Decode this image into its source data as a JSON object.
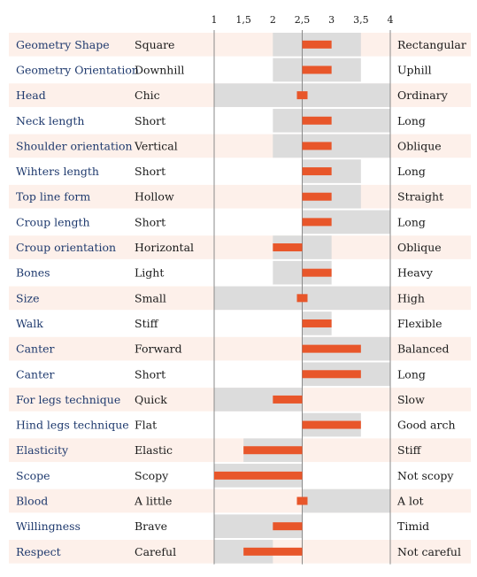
{
  "chart_data": {
    "type": "bar",
    "title": "",
    "xlim": [
      1,
      4
    ],
    "midpoint": 2.5,
    "x_ticks": [
      "1",
      "1,5",
      "2",
      "2,5",
      "3",
      "3,5",
      "4"
    ],
    "x_tick_values": [
      1,
      1.5,
      2,
      2.5,
      3,
      3.5,
      4
    ],
    "colors": {
      "bar": "#e8562a",
      "range": "#dcdcdc",
      "row_band": "#fdf0ea",
      "axis": "#8a8a8a"
    },
    "rows": [
      {
        "trait": "Geometry Shape",
        "low": "Square",
        "high": "Rectangular",
        "value": 3.0,
        "range": [
          2.0,
          3.5
        ]
      },
      {
        "trait": "Geometry Orientation",
        "low": "Downhill",
        "high": "Uphill",
        "value": 3.0,
        "range": [
          2.0,
          3.5
        ]
      },
      {
        "trait": "Head",
        "low": "Chic",
        "high": "Ordinary",
        "value": 2.6,
        "range": [
          1.0,
          4.0
        ]
      },
      {
        "trait": "Neck length",
        "low": "Short",
        "high": "Long",
        "value": 3.0,
        "range": [
          2.0,
          4.0
        ]
      },
      {
        "trait": "Shoulder orientation",
        "low": "Vertical",
        "high": "Oblique",
        "value": 3.0,
        "range": [
          2.0,
          4.0
        ]
      },
      {
        "trait": "Wihters length",
        "low": "Short",
        "high": "Long",
        "value": 3.0,
        "range": [
          2.5,
          3.5
        ]
      },
      {
        "trait": "Top line form",
        "low": "Hollow",
        "high": "Straight",
        "value": 3.0,
        "range": [
          2.5,
          3.5
        ]
      },
      {
        "trait": "Croup length",
        "low": "Short",
        "high": "Long",
        "value": 3.0,
        "range": [
          2.5,
          4.0
        ]
      },
      {
        "trait": "Croup orientation",
        "low": "Horizontal",
        "high": "Oblique",
        "value": 2.0,
        "range": [
          2.0,
          3.0
        ]
      },
      {
        "trait": "Bones",
        "low": "Light",
        "high": "Heavy",
        "value": 3.0,
        "range": [
          2.0,
          3.0
        ]
      },
      {
        "trait": "Size",
        "low": "Small",
        "high": "High",
        "value": 2.4,
        "range": [
          1.0,
          4.0
        ]
      },
      {
        "trait": "Walk",
        "low": "Stiff",
        "high": "Flexible",
        "value": 3.0,
        "range": [
          2.5,
          3.0
        ]
      },
      {
        "trait": "Canter",
        "low": "Forward",
        "high": "Balanced",
        "value": 3.5,
        "range": [
          2.5,
          4.0
        ]
      },
      {
        "trait": "Canter",
        "low": "Short",
        "high": "Long",
        "value": 3.5,
        "range": [
          2.5,
          4.0
        ]
      },
      {
        "trait": "For legs technique",
        "low": "Quick",
        "high": "Slow",
        "value": 2.0,
        "range": [
          1.0,
          2.5
        ]
      },
      {
        "trait": "Hind legs technique",
        "low": "Flat",
        "high": "Good arch",
        "value": 3.5,
        "range": [
          2.5,
          3.5
        ]
      },
      {
        "trait": "Elasticity",
        "low": "Elastic",
        "high": "Stiff",
        "value": 1.5,
        "range": [
          1.5,
          2.5
        ]
      },
      {
        "trait": "Scope",
        "low": "Scopy",
        "high": "Not scopy",
        "value": 1.0,
        "range": [
          1.0,
          2.5
        ]
      },
      {
        "trait": "Blood",
        "low": "A little",
        "high": "A lot",
        "value": 2.6,
        "range": [
          2.5,
          4.0
        ]
      },
      {
        "trait": "Willingness",
        "low": "Brave",
        "high": "Timid",
        "value": 2.0,
        "range": [
          1.0,
          2.5
        ]
      },
      {
        "trait": "Respect",
        "low": "Careful",
        "high": "Not careful",
        "value": 1.5,
        "range": [
          1.0,
          2.0
        ]
      }
    ]
  }
}
